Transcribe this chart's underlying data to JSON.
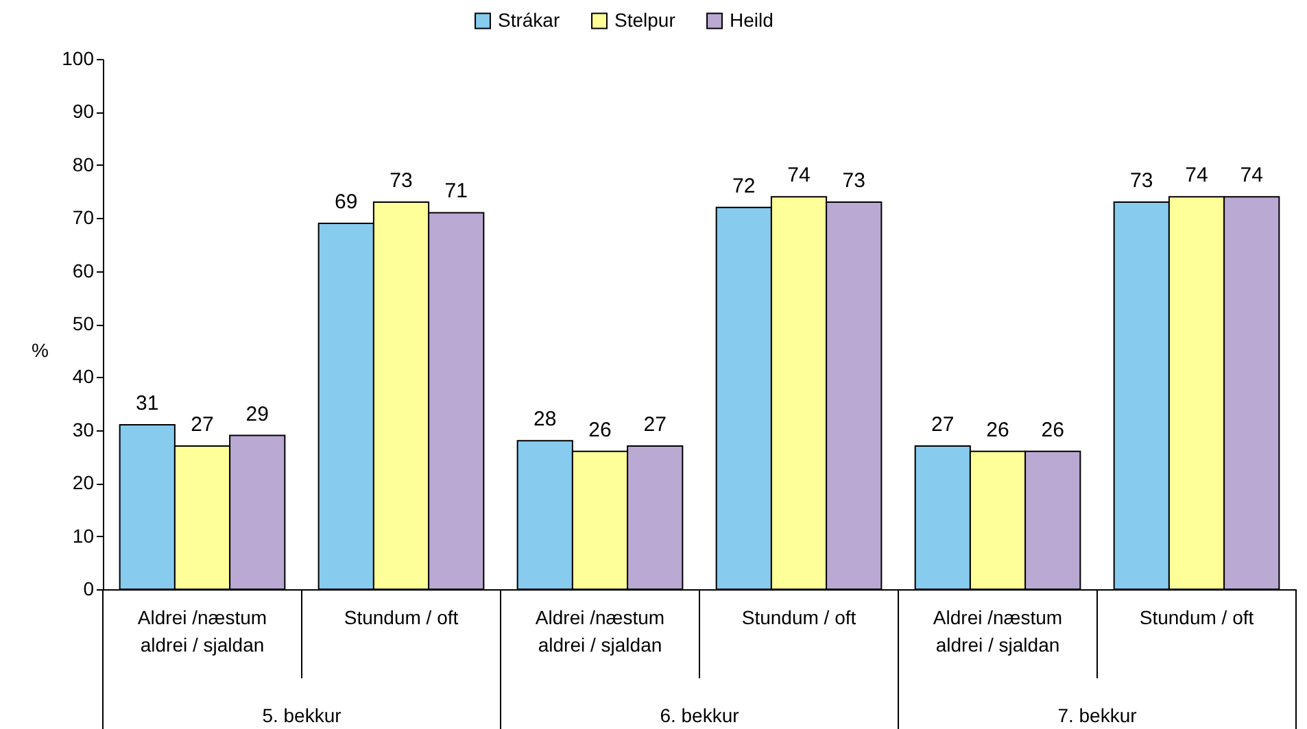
{
  "chart_data": {
    "type": "bar",
    "categories": [
      "Aldrei /næstum\naldrei / sjaldan",
      "Stundum / oft",
      "Aldrei /næstum\naldrei / sjaldan",
      "Stundum / oft",
      "Aldrei /næstum\naldrei / sjaldan",
      "Stundum / oft"
    ],
    "series": [
      {
        "name": "Strákar",
        "color": "#87cbef",
        "values": [
          31,
          69,
          28,
          72,
          27,
          73
        ]
      },
      {
        "name": "Stelpur",
        "color": "#ffff99",
        "values": [
          27,
          73,
          26,
          74,
          26,
          74
        ]
      },
      {
        "name": "Heild",
        "color": "#b9a9d3",
        "values": [
          29,
          71,
          27,
          73,
          26,
          74
        ]
      }
    ],
    "ylabel": "%",
    "ylim": [
      0,
      100
    ],
    "yticks": [
      0,
      10,
      20,
      30,
      40,
      50,
      60,
      70,
      80,
      90,
      100
    ],
    "annotations": [
      "5. bekkur",
      "6. bekkur",
      "7. bekkur"
    ],
    "data_labels": true,
    "grid": false,
    "legend": "top"
  }
}
